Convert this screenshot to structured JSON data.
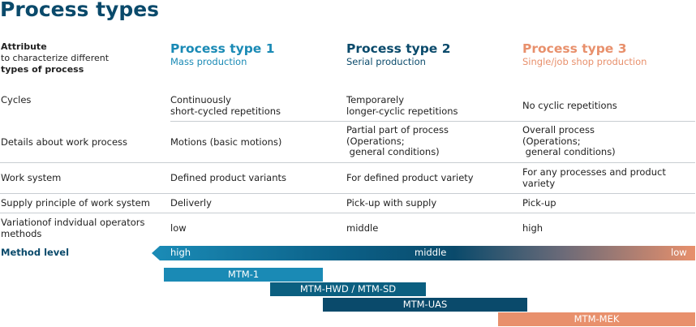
{
  "title": "Process types",
  "attribute_header": {
    "line1": "Attribute",
    "line2": "to characterize different",
    "line3": "types of process"
  },
  "columns": [
    {
      "title": "Process type 1",
      "subtitle": "Mass production",
      "color": "#1a8ab5"
    },
    {
      "title": "Process type 2",
      "subtitle": "Serial production",
      "color": "#0a4a6b"
    },
    {
      "title": "Process type 3",
      "subtitle": "Single/job shop production",
      "color": "#e8906c"
    }
  ],
  "rows": [
    {
      "attribute": "Cycles",
      "cells": [
        "Continuously\nshort-cycled repetitions",
        "Temporarely\nlonger-cyclic repetitions",
        "No cyclic repetitions"
      ]
    },
    {
      "attribute": "Details about work process",
      "cells": [
        "Motions (basic motions)",
        "Partial part of process\n(Operations;\n general conditions)",
        "Overall process\n(Operations;\n general conditions)"
      ]
    },
    {
      "attribute": "Work system",
      "cells": [
        "Defined product variants",
        "For defined product variety",
        "For any processes and product\nvariety"
      ]
    },
    {
      "attribute": "Supply principle of work system",
      "cells": [
        "Deliverly",
        "Pick-up with supply",
        "Pick-up"
      ]
    },
    {
      "attribute": "Variationof indvidual operators\nmethods",
      "cells": [
        "low",
        "middle",
        "high"
      ]
    }
  ],
  "method_level": {
    "label": "Method level",
    "high": "high",
    "middle": "middle",
    "low": "low"
  },
  "mtm_bars": [
    {
      "label": "MTM-1",
      "color": "#1a8ab5"
    },
    {
      "label": "MTM-HWD / MTM-SD",
      "color": "#0b5f80"
    },
    {
      "label": "MTM-UAS",
      "color": "#0a4a6b"
    },
    {
      "label": "MTM-MEK",
      "color": "#e8906c"
    }
  ]
}
